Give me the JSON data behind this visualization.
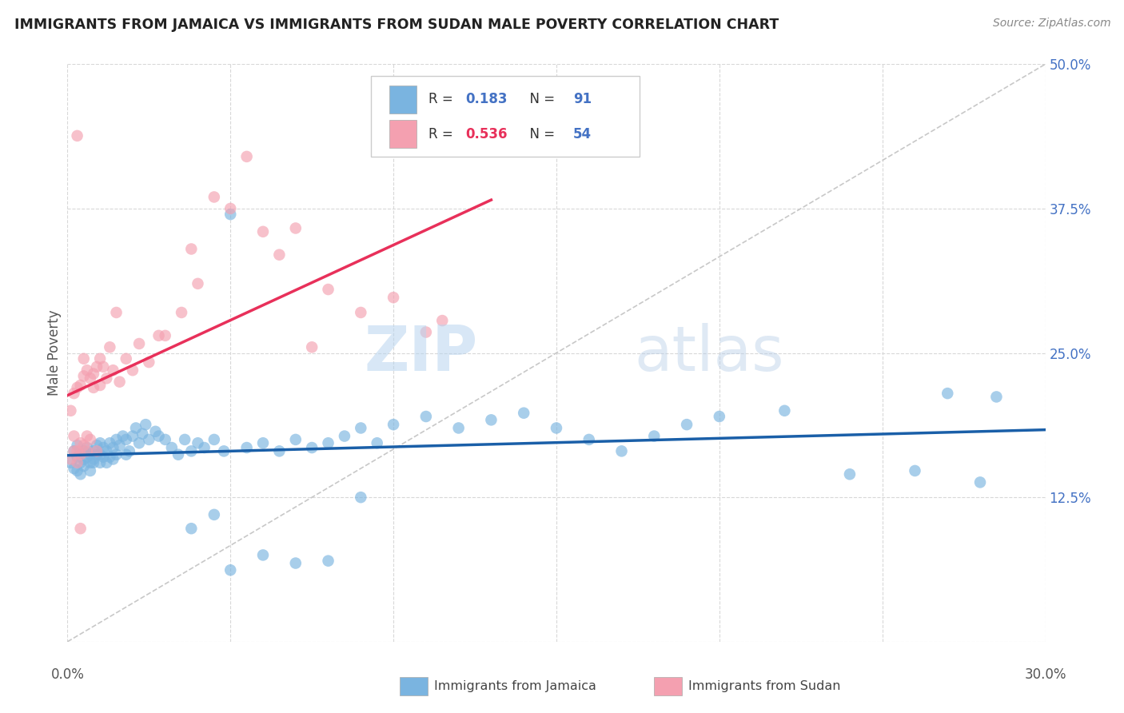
{
  "title": "IMMIGRANTS FROM JAMAICA VS IMMIGRANTS FROM SUDAN MALE POVERTY CORRELATION CHART",
  "source": "Source: ZipAtlas.com",
  "ylabel": "Male Poverty",
  "legend_label1": "Immigrants from Jamaica",
  "legend_label2": "Immigrants from Sudan",
  "R1": 0.183,
  "N1": 91,
  "R2": 0.536,
  "N2": 54,
  "xlim": [
    0.0,
    0.3
  ],
  "ylim": [
    0.0,
    0.5
  ],
  "xticks": [
    0.0,
    0.05,
    0.1,
    0.15,
    0.2,
    0.25,
    0.3
  ],
  "yticks": [
    0.0,
    0.125,
    0.25,
    0.375,
    0.5
  ],
  "color_jamaica": "#7ab4e0",
  "color_sudan": "#f4a0b0",
  "color_jamaica_line": "#1a5fa8",
  "color_sudan_line": "#e8305a",
  "color_diag": "#c8c8c8",
  "watermark_zip": "ZIP",
  "watermark_atlas": "atlas",
  "jamaica_x": [
    0.001,
    0.002,
    0.002,
    0.003,
    0.003,
    0.003,
    0.004,
    0.004,
    0.004,
    0.005,
    0.005,
    0.005,
    0.006,
    0.006,
    0.007,
    0.007,
    0.007,
    0.008,
    0.008,
    0.008,
    0.009,
    0.009,
    0.01,
    0.01,
    0.01,
    0.011,
    0.011,
    0.012,
    0.012,
    0.013,
    0.013,
    0.014,
    0.014,
    0.015,
    0.015,
    0.016,
    0.017,
    0.018,
    0.018,
    0.019,
    0.02,
    0.021,
    0.022,
    0.023,
    0.024,
    0.025,
    0.027,
    0.028,
    0.03,
    0.032,
    0.034,
    0.036,
    0.038,
    0.04,
    0.042,
    0.045,
    0.048,
    0.05,
    0.055,
    0.06,
    0.065,
    0.07,
    0.075,
    0.08,
    0.085,
    0.09,
    0.095,
    0.1,
    0.11,
    0.12,
    0.13,
    0.14,
    0.15,
    0.16,
    0.17,
    0.18,
    0.19,
    0.2,
    0.22,
    0.24,
    0.26,
    0.27,
    0.28,
    0.285,
    0.045,
    0.038,
    0.05,
    0.06,
    0.07,
    0.08,
    0.09
  ],
  "jamaica_y": [
    0.155,
    0.15,
    0.165,
    0.148,
    0.16,
    0.17,
    0.155,
    0.162,
    0.145,
    0.158,
    0.165,
    0.152,
    0.16,
    0.168,
    0.155,
    0.162,
    0.148,
    0.158,
    0.165,
    0.155,
    0.162,
    0.17,
    0.155,
    0.162,
    0.172,
    0.16,
    0.168,
    0.155,
    0.165,
    0.16,
    0.172,
    0.158,
    0.168,
    0.175,
    0.162,
    0.17,
    0.178,
    0.162,
    0.175,
    0.165,
    0.178,
    0.185,
    0.172,
    0.18,
    0.188,
    0.175,
    0.182,
    0.178,
    0.175,
    0.168,
    0.162,
    0.175,
    0.165,
    0.172,
    0.168,
    0.175,
    0.165,
    0.37,
    0.168,
    0.172,
    0.165,
    0.175,
    0.168,
    0.172,
    0.178,
    0.185,
    0.172,
    0.188,
    0.195,
    0.185,
    0.192,
    0.198,
    0.185,
    0.175,
    0.165,
    0.178,
    0.188,
    0.195,
    0.2,
    0.145,
    0.148,
    0.215,
    0.138,
    0.212,
    0.11,
    0.098,
    0.062,
    0.075,
    0.068,
    0.07,
    0.125
  ],
  "sudan_x": [
    0.001,
    0.001,
    0.002,
    0.002,
    0.002,
    0.003,
    0.003,
    0.003,
    0.004,
    0.004,
    0.004,
    0.005,
    0.005,
    0.005,
    0.006,
    0.006,
    0.006,
    0.007,
    0.007,
    0.008,
    0.008,
    0.009,
    0.009,
    0.01,
    0.01,
    0.011,
    0.012,
    0.013,
    0.014,
    0.015,
    0.016,
    0.018,
    0.02,
    0.022,
    0.025,
    0.028,
    0.03,
    0.035,
    0.038,
    0.04,
    0.045,
    0.05,
    0.055,
    0.06,
    0.065,
    0.07,
    0.075,
    0.08,
    0.09,
    0.1,
    0.11,
    0.115,
    0.003,
    0.004
  ],
  "sudan_y": [
    0.158,
    0.2,
    0.165,
    0.178,
    0.215,
    0.155,
    0.22,
    0.165,
    0.172,
    0.222,
    0.162,
    0.23,
    0.17,
    0.245,
    0.178,
    0.235,
    0.165,
    0.228,
    0.175,
    0.232,
    0.22,
    0.238,
    0.165,
    0.245,
    0.222,
    0.238,
    0.228,
    0.255,
    0.235,
    0.285,
    0.225,
    0.245,
    0.235,
    0.258,
    0.242,
    0.265,
    0.265,
    0.285,
    0.34,
    0.31,
    0.385,
    0.375,
    0.42,
    0.355,
    0.335,
    0.358,
    0.255,
    0.305,
    0.285,
    0.298,
    0.268,
    0.278,
    0.438,
    0.098
  ]
}
